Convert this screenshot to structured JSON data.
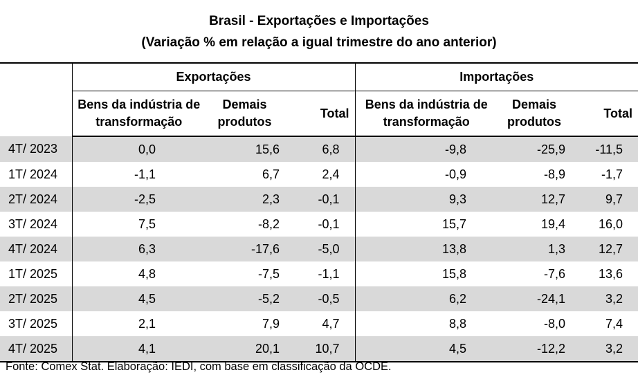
{
  "title": {
    "line1": "Brasil - Exportações e Importações",
    "line2": "(Variação % em relação a igual trimestre do ano anterior)"
  },
  "table": {
    "groups": {
      "exports": "Exportações",
      "imports": "Importações"
    },
    "subheaders": {
      "exports": {
        "industry_l1": "Bens da indústria de",
        "industry_l2": "transformação",
        "other_l1": "Demais",
        "other_l2": "produtos",
        "total": "Total"
      },
      "imports": {
        "industry_l1": "Bens da indústria de",
        "industry_l2": "transformação",
        "other_l1": "Demais",
        "other_l2": "produtos",
        "total": "Total"
      }
    },
    "rows": [
      {
        "period": "4T/ 2023",
        "exp_ind": "0,0",
        "exp_other": "15,6",
        "exp_total": "6,8",
        "imp_ind": "-9,8",
        "imp_other": "-25,9",
        "imp_total": "-11,5"
      },
      {
        "period": "1T/ 2024",
        "exp_ind": "-1,1",
        "exp_other": "6,7",
        "exp_total": "2,4",
        "imp_ind": "-0,9",
        "imp_other": "-8,9",
        "imp_total": "-1,7"
      },
      {
        "period": "2T/ 2024",
        "exp_ind": "-2,5",
        "exp_other": "2,3",
        "exp_total": "-0,1",
        "imp_ind": "9,3",
        "imp_other": "12,7",
        "imp_total": "9,7"
      },
      {
        "period": "3T/ 2024",
        "exp_ind": "7,5",
        "exp_other": "-8,2",
        "exp_total": "-0,1",
        "imp_ind": "15,7",
        "imp_other": "19,4",
        "imp_total": "16,0"
      },
      {
        "period": "4T/ 2024",
        "exp_ind": "6,3",
        "exp_other": "-17,6",
        "exp_total": "-5,0",
        "imp_ind": "13,8",
        "imp_other": "1,3",
        "imp_total": "12,7"
      },
      {
        "period": "1T/ 2025",
        "exp_ind": "4,8",
        "exp_other": "-7,5",
        "exp_total": "-1,1",
        "imp_ind": "15,8",
        "imp_other": "-7,6",
        "imp_total": "13,6"
      },
      {
        "period": "2T/ 2025",
        "exp_ind": "4,5",
        "exp_other": "-5,2",
        "exp_total": "-0,5",
        "imp_ind": "6,2",
        "imp_other": "-24,1",
        "imp_total": "3,2"
      },
      {
        "period": "3T/ 2025",
        "exp_ind": "2,1",
        "exp_other": "7,9",
        "exp_total": "4,7",
        "imp_ind": "8,8",
        "imp_other": "-8,0",
        "imp_total": "7,4"
      },
      {
        "period": "4T/ 2025",
        "exp_ind": "4,1",
        "exp_other": "20,1",
        "exp_total": "10,7",
        "imp_ind": "4,5",
        "imp_other": "-12,2",
        "imp_total": "3,2"
      }
    ]
  },
  "source": "Fonte: Comex Stat. Elaboração: IEDI, com base em classificação da OCDE."
}
